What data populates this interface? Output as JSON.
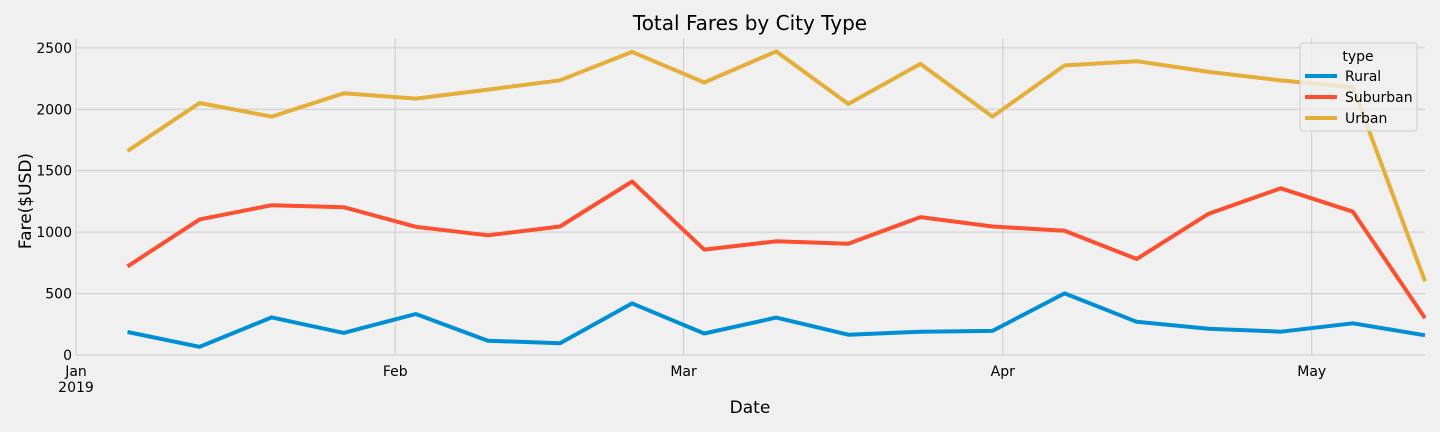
{
  "chart_data": {
    "type": "line",
    "title": "Total Fares by City Type",
    "xlabel": "Date",
    "ylabel": "Fare($USD)",
    "x": [
      "2019-01-06",
      "2019-01-13",
      "2019-01-20",
      "2019-01-27",
      "2019-02-03",
      "2019-02-10",
      "2019-02-17",
      "2019-02-24",
      "2019-03-03",
      "2019-03-10",
      "2019-03-17",
      "2019-03-24",
      "2019-03-31",
      "2019-04-07",
      "2019-04-14",
      "2019-04-21",
      "2019-04-28",
      "2019-05-05",
      "2019-05-12"
    ],
    "x_ticks": [
      {
        "date": "2019-01-01",
        "label": "Jan",
        "sublabel": "2019"
      },
      {
        "date": "2019-02-01",
        "label": "Feb",
        "sublabel": ""
      },
      {
        "date": "2019-03-01",
        "label": "Mar",
        "sublabel": ""
      },
      {
        "date": "2019-04-01",
        "label": "Apr",
        "sublabel": ""
      },
      {
        "date": "2019-05-01",
        "label": "May",
        "sublabel": ""
      }
    ],
    "ylim": [
      0,
      2580
    ],
    "y_ticks": [
      0,
      500,
      1000,
      1500,
      2000,
      2500
    ],
    "grid": true,
    "legend": {
      "title": "type",
      "placement": "top-right"
    },
    "series": [
      {
        "name": "Rural",
        "color": "#008fd5",
        "values": [
          187,
          67,
          306,
          180,
          334,
          116,
          95,
          420,
          175,
          304,
          165,
          190,
          196,
          501,
          270,
          213,
          190,
          258,
          160
        ]
      },
      {
        "name": "Suburban",
        "color": "#fc4f30",
        "values": [
          721,
          1104,
          1219,
          1203,
          1043,
          974,
          1046,
          1412,
          858,
          925,
          906,
          1122,
          1046,
          1011,
          781,
          1150,
          1357,
          1166,
          300
        ]
      },
      {
        "name": "Urban",
        "color": "#e5ae38",
        "values": [
          1661,
          2051,
          1940,
          2130,
          2087,
          2160,
          2236,
          2467,
          2218,
          2471,
          2043,
          2369,
          1940,
          2357,
          2391,
          2304,
          2235,
          2179,
          600
        ]
      }
    ]
  }
}
